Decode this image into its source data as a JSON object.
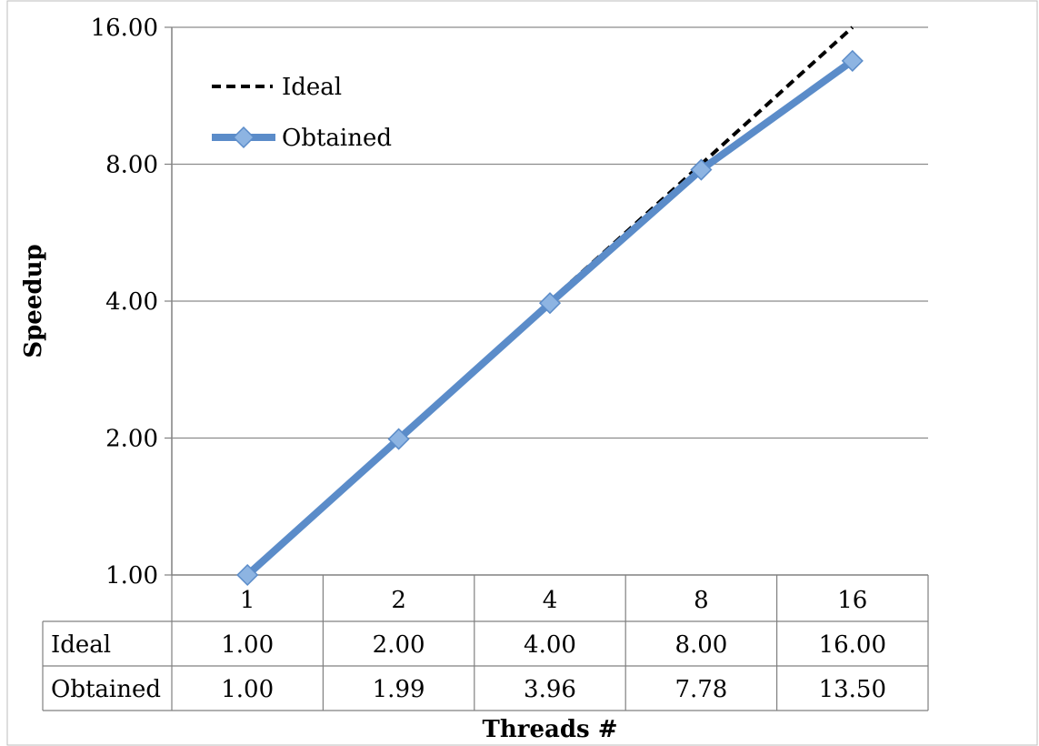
{
  "chart_data": {
    "type": "line",
    "xlabel": "Threads #",
    "ylabel": "Speedup",
    "y_scale": "log2",
    "ylim": [
      1,
      16
    ],
    "y_ticks": [
      "1.00",
      "2.00",
      "4.00",
      "8.00",
      "16.00"
    ],
    "categories": [
      "1",
      "2",
      "4",
      "8",
      "16"
    ],
    "legend_position": "top-left",
    "grid": "horizontal",
    "series": [
      {
        "name": "Ideal",
        "style": "dashed",
        "color": "#000000",
        "values": [
          1.0,
          2.0,
          4.0,
          8.0,
          16.0
        ],
        "labels": [
          "1.00",
          "2.00",
          "4.00",
          "8.00",
          "16.00"
        ]
      },
      {
        "name": "Obtained",
        "style": "solid-diamond",
        "color": "#5B8CC9",
        "marker_color": "#8DB4E2",
        "values": [
          1.0,
          1.99,
          3.96,
          7.78,
          13.5
        ],
        "labels": [
          "1.00",
          "1.99",
          "3.96",
          "7.78",
          "13.50"
        ]
      }
    ]
  }
}
